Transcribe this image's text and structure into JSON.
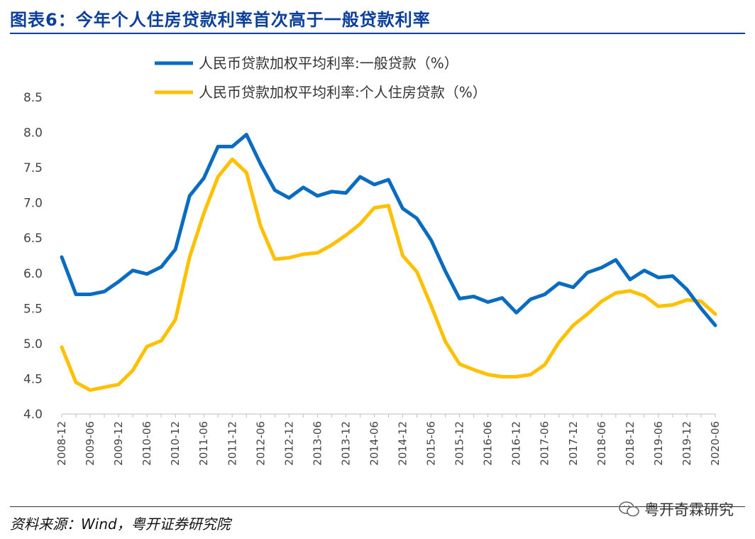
{
  "header": {
    "title": "图表6：今年个人住房贷款利率首次高于一般贷款利率"
  },
  "footer": {
    "source": "资料来源：Wind，粤开证券研究院",
    "watermark": "粤开奇霖研究"
  },
  "colors": {
    "title": "#0b3f9a",
    "series_general": "#0a6cc0",
    "series_housing": "#ffc000"
  },
  "chart_data": {
    "type": "line",
    "title": "",
    "xlabel": "",
    "ylabel": "",
    "ylim": [
      4.0,
      8.5
    ],
    "yticks": [
      "4.0",
      "4.5",
      "5.0",
      "5.5",
      "6.0",
      "6.5",
      "7.0",
      "7.5",
      "8.0",
      "8.5"
    ],
    "x": [
      "2008-12",
      "2009-03",
      "2009-06",
      "2009-09",
      "2009-12",
      "2010-03",
      "2010-06",
      "2010-09",
      "2010-12",
      "2011-03",
      "2011-06",
      "2011-09",
      "2011-12",
      "2012-03",
      "2012-06",
      "2012-09",
      "2012-12",
      "2013-03",
      "2013-06",
      "2013-09",
      "2013-12",
      "2014-03",
      "2014-06",
      "2014-09",
      "2014-12",
      "2015-03",
      "2015-06",
      "2015-09",
      "2015-12",
      "2016-03",
      "2016-06",
      "2016-09",
      "2016-12",
      "2017-03",
      "2017-06",
      "2017-09",
      "2017-12",
      "2018-03",
      "2018-06",
      "2018-09",
      "2018-12",
      "2019-03",
      "2019-06",
      "2019-09",
      "2019-12",
      "2020-03",
      "2020-06"
    ],
    "xtick_labels": [
      "2008-12",
      "2009-06",
      "2009-12",
      "2010-06",
      "2010-12",
      "2011-06",
      "2011-12",
      "2012-06",
      "2012-12",
      "2013-06",
      "2013-12",
      "2014-06",
      "2014-12",
      "2015-06",
      "2015-12",
      "2016-06",
      "2016-12",
      "2017-06",
      "2017-12",
      "2018-06",
      "2018-12",
      "2019-06",
      "2019-12",
      "2020-06"
    ],
    "series": [
      {
        "name": "人民币贷款加权平均利率:一般贷款（%）",
        "values": [
          6.23,
          5.7,
          5.7,
          5.74,
          5.88,
          6.04,
          5.99,
          6.09,
          6.34,
          7.1,
          7.35,
          7.8,
          7.8,
          7.97,
          7.55,
          7.18,
          7.07,
          7.22,
          7.1,
          7.16,
          7.14,
          7.37,
          7.26,
          7.33,
          6.92,
          6.78,
          6.47,
          6.03,
          5.64,
          5.67,
          5.59,
          5.65,
          5.44,
          5.63,
          5.7,
          5.86,
          5.8,
          6.01,
          6.08,
          6.19,
          5.91,
          6.04,
          5.94,
          5.96,
          5.77,
          5.5,
          5.26
        ]
      },
      {
        "name": "人民币贷款加权平均利率:个人住房贷款（%）",
        "values": [
          4.95,
          4.45,
          4.34,
          4.38,
          4.42,
          4.62,
          4.96,
          5.04,
          5.34,
          6.23,
          6.85,
          7.37,
          7.62,
          7.43,
          6.67,
          6.2,
          6.22,
          6.27,
          6.29,
          6.4,
          6.54,
          6.7,
          6.93,
          6.96,
          6.25,
          6.02,
          5.54,
          5.03,
          4.71,
          4.63,
          4.56,
          4.53,
          4.53,
          4.56,
          4.7,
          5.02,
          5.26,
          5.42,
          5.6,
          5.72,
          5.75,
          5.68,
          5.53,
          5.55,
          5.62,
          5.6,
          5.42
        ]
      }
    ],
    "legend": "top-center",
    "grid": false
  }
}
